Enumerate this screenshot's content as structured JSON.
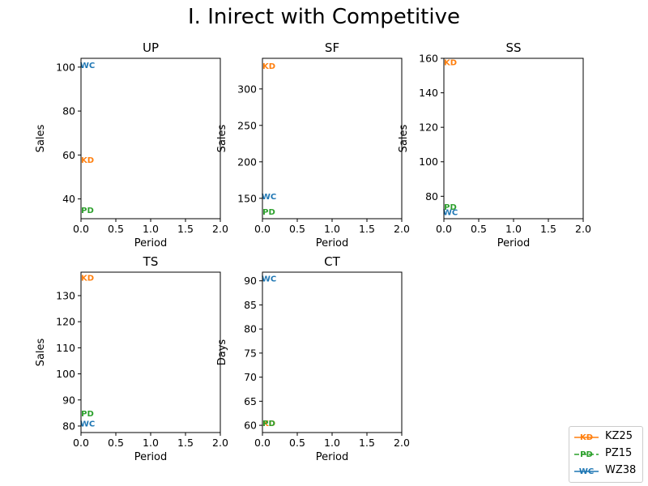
{
  "figure": {
    "title": "I. Inirect with Competitive"
  },
  "colors": {
    "KZ25": "#ff7f0e",
    "PZ15": "#2ca02c",
    "WZ38": "#1f77b4"
  },
  "legend": {
    "placement": "bottom-right",
    "entries": [
      {
        "label": "KZ25",
        "marker": "KD",
        "color": "#ff7f0e",
        "line": "solid"
      },
      {
        "label": "PZ15",
        "marker": "PD",
        "color": "#2ca02c",
        "line": "dashed"
      },
      {
        "label": "WZ38",
        "marker": "WC",
        "color": "#1f77b4",
        "line": "solid"
      }
    ]
  },
  "chart_data": [
    {
      "type": "scatter",
      "title": "UP",
      "xlabel": "Period",
      "ylabel": "Sales",
      "xlim": [
        0,
        2
      ],
      "ylim": [
        31,
        104
      ],
      "xticks": [
        "0.0",
        "0.5",
        "1.0",
        "1.5",
        "2.0"
      ],
      "xtick_values": [
        0,
        0.5,
        1,
        1.5,
        2
      ],
      "yticks": [
        "40",
        "60",
        "80",
        "100"
      ],
      "ytick_values": [
        40,
        60,
        80,
        100
      ],
      "series": [
        {
          "name": "KZ25",
          "marker": "KD",
          "x": [
            0
          ],
          "y": [
            58
          ]
        },
        {
          "name": "PZ15",
          "marker": "PD",
          "x": [
            0
          ],
          "y": [
            35
          ]
        },
        {
          "name": "WZ38",
          "marker": "WC",
          "x": [
            0
          ],
          "y": [
            101
          ]
        }
      ]
    },
    {
      "type": "scatter",
      "title": "SF",
      "xlabel": "Period",
      "ylabel": "Sales",
      "xlim": [
        0,
        2
      ],
      "ylim": [
        122,
        342
      ],
      "xticks": [
        "0.0",
        "0.5",
        "1.0",
        "1.5",
        "2.0"
      ],
      "xtick_values": [
        0,
        0.5,
        1,
        1.5,
        2
      ],
      "yticks": [
        "150",
        "200",
        "250",
        "300"
      ],
      "ytick_values": [
        150,
        200,
        250,
        300
      ],
      "series": [
        {
          "name": "KZ25",
          "marker": "KD",
          "x": [
            0
          ],
          "y": [
            332
          ]
        },
        {
          "name": "PZ15",
          "marker": "PD",
          "x": [
            0
          ],
          "y": [
            132
          ]
        },
        {
          "name": "WZ38",
          "marker": "WC",
          "x": [
            0
          ],
          "y": [
            153
          ]
        }
      ]
    },
    {
      "type": "scatter",
      "title": "SS",
      "xlabel": "Period",
      "ylabel": "Sales",
      "xlim": [
        0,
        2
      ],
      "ylim": [
        67,
        160
      ],
      "xticks": [
        "0.0",
        "0.5",
        "1.0",
        "1.5",
        "2.0"
      ],
      "xtick_values": [
        0,
        0.5,
        1,
        1.5,
        2
      ],
      "yticks": [
        "80",
        "100",
        "120",
        "140",
        "160"
      ],
      "ytick_values": [
        80,
        100,
        120,
        140,
        160
      ],
      "series": [
        {
          "name": "KZ25",
          "marker": "KD",
          "x": [
            0
          ],
          "y": [
            158
          ]
        },
        {
          "name": "PZ15",
          "marker": "PD",
          "x": [
            0
          ],
          "y": [
            74
          ]
        },
        {
          "name": "WZ38",
          "marker": "WC",
          "x": [
            0
          ],
          "y": [
            71
          ]
        }
      ]
    },
    {
      "type": "scatter",
      "title": "TS",
      "xlabel": "Period",
      "ylabel": "Sales",
      "xlim": [
        0,
        2
      ],
      "ylim": [
        77.5,
        139
      ],
      "xticks": [
        "0.0",
        "0.5",
        "1.0",
        "1.5",
        "2.0"
      ],
      "xtick_values": [
        0,
        0.5,
        1,
        1.5,
        2
      ],
      "yticks": [
        "80",
        "90",
        "100",
        "110",
        "120",
        "130"
      ],
      "ytick_values": [
        80,
        90,
        100,
        110,
        120,
        130
      ],
      "series": [
        {
          "name": "KZ25",
          "marker": "KD",
          "x": [
            0
          ],
          "y": [
            137
          ]
        },
        {
          "name": "PZ15",
          "marker": "PD",
          "x": [
            0
          ],
          "y": [
            85
          ]
        },
        {
          "name": "WZ38",
          "marker": "WC",
          "x": [
            0
          ],
          "y": [
            81
          ]
        }
      ]
    },
    {
      "type": "scatter",
      "title": "CT",
      "xlabel": "Period",
      "ylabel": "Days",
      "xlim": [
        0,
        2
      ],
      "ylim": [
        58.5,
        91.8
      ],
      "xticks": [
        "0.0",
        "0.5",
        "1.0",
        "1.5",
        "2.0"
      ],
      "xtick_values": [
        0,
        0.5,
        1,
        1.5,
        2
      ],
      "yticks": [
        "60",
        "65",
        "70",
        "75",
        "80",
        "85",
        "90"
      ],
      "ytick_values": [
        60,
        65,
        70,
        75,
        80,
        85,
        90
      ],
      "series": [
        {
          "name": "KZ25",
          "marker": "KD",
          "x": [
            0
          ],
          "y": [
            60.5
          ]
        },
        {
          "name": "PZ15",
          "marker": "PD",
          "x": [
            0
          ],
          "y": [
            60.5
          ]
        },
        {
          "name": "WZ38",
          "marker": "WC",
          "x": [
            0
          ],
          "y": [
            90.5
          ]
        }
      ]
    }
  ]
}
